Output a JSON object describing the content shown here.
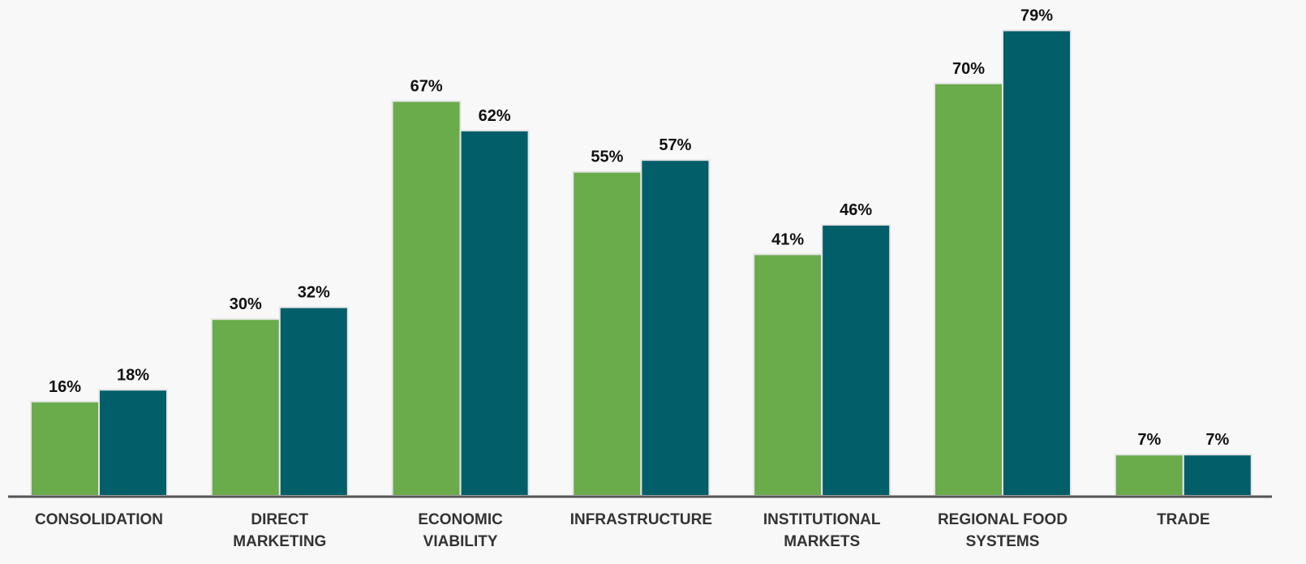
{
  "chart_data": {
    "type": "bar",
    "categories": [
      [
        "CONSOLIDATION"
      ],
      [
        "DIRECT",
        "MARKETING"
      ],
      [
        "ECONOMIC",
        "VIABILITY"
      ],
      [
        "INFRASTRUCTURE"
      ],
      [
        "INSTITUTIONAL",
        "MARKETS"
      ],
      [
        "REGIONAL FOOD",
        "SYSTEMS"
      ],
      [
        "TRADE"
      ]
    ],
    "series": [
      {
        "color": "#6aab4c",
        "values": [
          16,
          30,
          67,
          55,
          41,
          70,
          7
        ],
        "labels": [
          "16%",
          "30%",
          "67%",
          "55%",
          "41%",
          "70%",
          "7%"
        ]
      },
      {
        "color": "#025e69",
        "values": [
          18,
          32,
          62,
          57,
          46,
          79,
          7
        ],
        "labels": [
          "18%",
          "32%",
          "62%",
          "57%",
          "46%",
          "79%",
          "7%"
        ]
      }
    ],
    "ylim": [
      0,
      83
    ],
    "grid": false,
    "legend": "none",
    "axis_color": "#555555"
  }
}
